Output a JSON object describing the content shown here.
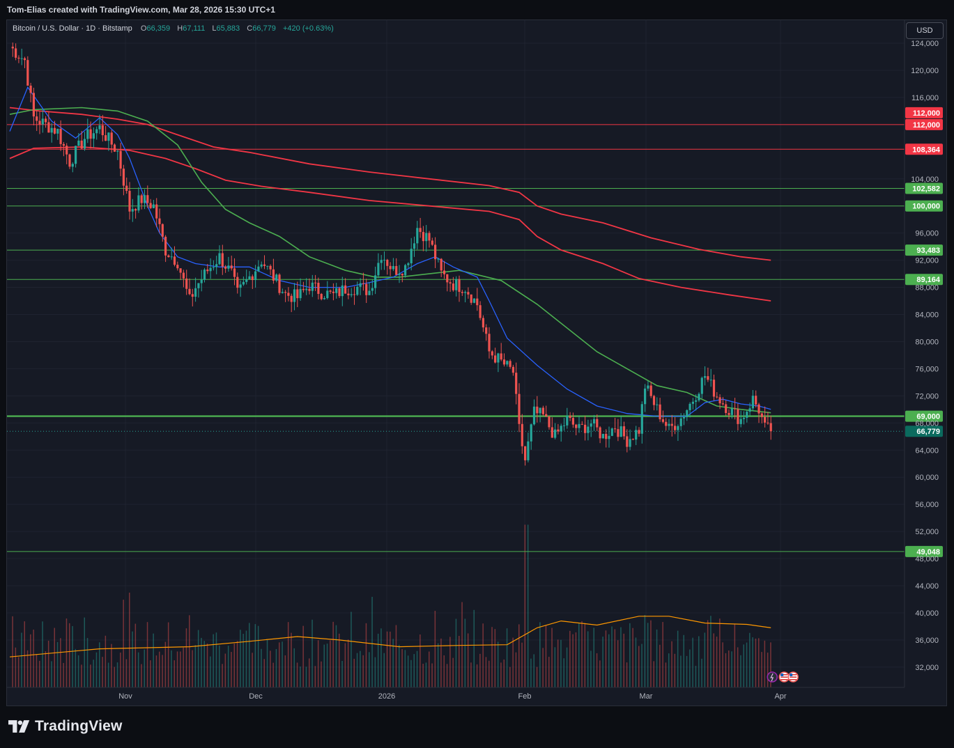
{
  "header": {
    "created_by": "Tom-Elias created with TradingView.com, Mar 28, 2026 15:30 UTC+1"
  },
  "legend": {
    "symbol": "Bitcoin / U.S. Dollar · 1D · Bitstamp",
    "open_label": "O",
    "open": "66,359",
    "high_label": "H",
    "high": "67,111",
    "low_label": "L",
    "low": "65,883",
    "close_label": "C",
    "close": "66,779",
    "change": "+420 (+0.63%)"
  },
  "currency_button": "USD",
  "footer": {
    "brand": "TradingView"
  },
  "colors": {
    "bull": "#26a69a",
    "bear": "#ef5350",
    "ema_short": "#2962ff",
    "ema_mid": "#4caf50",
    "ema_long": "#f23645",
    "volume_ma": "#ff9800",
    "hline_green": "#4caf50",
    "hline_red": "#f23645"
  },
  "chart_data": {
    "type": "candlestick",
    "y_axis_ticks": [
      "124,000",
      "120,000",
      "116,000",
      "104,000",
      "96,000",
      "92,000",
      "88,000",
      "84,000",
      "80,000",
      "76,000",
      "72,000",
      "68,000",
      "64,000",
      "60,000",
      "56,000",
      "52,000",
      "48,000",
      "44,000",
      "40,000",
      "36,000",
      "32,000"
    ],
    "ylim": [
      29000,
      127000
    ],
    "x_axis_labels": [
      "Nov",
      "Dec",
      "2026",
      "Feb",
      "Mar",
      "Apr"
    ],
    "horizontal_levels": [
      {
        "value": 112000,
        "label": "112,000",
        "color": "red"
      },
      {
        "value": 108364,
        "label": "108,364",
        "color": "red"
      },
      {
        "value": 102582,
        "label": "102,582",
        "color": "green"
      },
      {
        "value": 100000,
        "label": "100,000",
        "color": "green"
      },
      {
        "value": 93483,
        "label": "93,483",
        "color": "green"
      },
      {
        "value": 89164,
        "label": "89,164",
        "color": "green"
      },
      {
        "value": 69000,
        "label": "69,000",
        "color": "green"
      },
      {
        "value": 49048,
        "label": "49,048",
        "color": "green"
      }
    ],
    "extra_price_labels": [
      {
        "value": 112000,
        "label": "112,000"
      }
    ],
    "last_price": {
      "value": 66779,
      "label": "66,779"
    },
    "price_path": [
      [
        0,
        123500
      ],
      [
        5,
        121500
      ],
      [
        8,
        113000
      ],
      [
        12,
        112000
      ],
      [
        16,
        111000
      ],
      [
        20,
        106500
      ],
      [
        25,
        110000
      ],
      [
        30,
        111500
      ],
      [
        36,
        108000
      ],
      [
        40,
        99500
      ],
      [
        44,
        101000
      ],
      [
        48,
        100000
      ],
      [
        52,
        93500
      ],
      [
        56,
        91800
      ],
      [
        60,
        86000
      ],
      [
        62,
        88000
      ],
      [
        66,
        90500
      ],
      [
        70,
        92500
      ],
      [
        74,
        90000
      ],
      [
        76,
        87000
      ],
      [
        80,
        89500
      ],
      [
        84,
        92000
      ],
      [
        88,
        89500
      ],
      [
        92,
        87000
      ],
      [
        96,
        86500
      ],
      [
        100,
        88300
      ],
      [
        104,
        87300
      ],
      [
        108,
        86800
      ],
      [
        112,
        87800
      ],
      [
        116,
        88000
      ],
      [
        120,
        87500
      ],
      [
        124,
        93000
      ],
      [
        128,
        90500
      ],
      [
        132,
        91000
      ],
      [
        136,
        96800
      ],
      [
        140,
        95000
      ],
      [
        144,
        90000
      ],
      [
        148,
        88500
      ],
      [
        152,
        88000
      ],
      [
        156,
        85500
      ],
      [
        160,
        78500
      ],
      [
        164,
        77000
      ],
      [
        168,
        75500
      ],
      [
        170,
        67000
      ],
      [
        172,
        62500
      ],
      [
        175,
        69500
      ],
      [
        178,
        69000
      ],
      [
        182,
        66000
      ],
      [
        186,
        68500
      ],
      [
        190,
        67000
      ],
      [
        194,
        68000
      ],
      [
        198,
        66000
      ],
      [
        202,
        67500
      ],
      [
        206,
        65500
      ],
      [
        210,
        67000
      ],
      [
        212,
        73500
      ],
      [
        216,
        70000
      ],
      [
        220,
        67000
      ],
      [
        224,
        68700
      ],
      [
        228,
        71500
      ],
      [
        232,
        75000
      ],
      [
        236,
        72000
      ],
      [
        240,
        70000
      ],
      [
        244,
        68500
      ],
      [
        248,
        71500
      ],
      [
        250,
        70000
      ],
      [
        252,
        67200
      ],
      [
        254,
        66779
      ]
    ],
    "ema_short": [
      [
        0,
        111000
      ],
      [
        6,
        117500
      ],
      [
        14,
        112500
      ],
      [
        22,
        110000
      ],
      [
        30,
        113000
      ],
      [
        36,
        110500
      ],
      [
        40,
        107000
      ],
      [
        46,
        100000
      ],
      [
        50,
        96000
      ],
      [
        56,
        92500
      ],
      [
        62,
        91500
      ],
      [
        70,
        91000
      ],
      [
        80,
        91000
      ],
      [
        90,
        89000
      ],
      [
        100,
        88000
      ],
      [
        112,
        88000
      ],
      [
        120,
        88700
      ],
      [
        128,
        89500
      ],
      [
        136,
        91500
      ],
      [
        142,
        92500
      ],
      [
        148,
        91000
      ],
      [
        156,
        89500
      ],
      [
        160,
        86000
      ],
      [
        166,
        80500
      ],
      [
        176,
        76500
      ],
      [
        186,
        73000
      ],
      [
        196,
        70500
      ],
      [
        206,
        69400
      ],
      [
        216,
        69000
      ],
      [
        226,
        69000
      ],
      [
        232,
        71000
      ],
      [
        238,
        71500
      ],
      [
        244,
        70800
      ],
      [
        250,
        70500
      ],
      [
        254,
        70000
      ]
    ],
    "ema_mid": [
      [
        0,
        113500
      ],
      [
        8,
        114200
      ],
      [
        24,
        114500
      ],
      [
        36,
        114000
      ],
      [
        46,
        112500
      ],
      [
        56,
        109000
      ],
      [
        64,
        103500
      ],
      [
        72,
        99500
      ],
      [
        80,
        97500
      ],
      [
        90,
        95500
      ],
      [
        100,
        92500
      ],
      [
        112,
        90500
      ],
      [
        122,
        89500
      ],
      [
        130,
        89500
      ],
      [
        140,
        90000
      ],
      [
        150,
        90500
      ],
      [
        164,
        89000
      ],
      [
        176,
        85500
      ],
      [
        186,
        82000
      ],
      [
        196,
        78500
      ],
      [
        206,
        76000
      ],
      [
        216,
        73500
      ],
      [
        226,
        72500
      ],
      [
        236,
        70500
      ],
      [
        244,
        70000
      ],
      [
        254,
        69500
      ]
    ],
    "ema_long_1": [
      [
        0,
        114500
      ],
      [
        10,
        114000
      ],
      [
        24,
        113500
      ],
      [
        36,
        112800
      ],
      [
        46,
        112000
      ],
      [
        56,
        110500
      ],
      [
        68,
        108700
      ],
      [
        80,
        107900
      ],
      [
        100,
        106200
      ],
      [
        120,
        105000
      ],
      [
        140,
        104000
      ],
      [
        160,
        103000
      ],
      [
        170,
        102000
      ],
      [
        176,
        100000
      ],
      [
        184,
        98800
      ],
      [
        198,
        97500
      ],
      [
        214,
        95300
      ],
      [
        230,
        93600
      ],
      [
        244,
        92500
      ],
      [
        254,
        92000
      ]
    ],
    "ema_long_2": [
      [
        0,
        107000
      ],
      [
        8,
        108500
      ],
      [
        24,
        108700
      ],
      [
        40,
        108200
      ],
      [
        52,
        107000
      ],
      [
        62,
        105500
      ],
      [
        72,
        103800
      ],
      [
        84,
        102900
      ],
      [
        100,
        102000
      ],
      [
        120,
        100800
      ],
      [
        140,
        100000
      ],
      [
        160,
        99200
      ],
      [
        170,
        98000
      ],
      [
        176,
        95500
      ],
      [
        184,
        93500
      ],
      [
        198,
        91500
      ],
      [
        210,
        89300
      ],
      [
        224,
        88000
      ],
      [
        240,
        86900
      ],
      [
        254,
        86000
      ]
    ],
    "volume_ma_path": [
      [
        0,
        33500
      ],
      [
        30,
        34700
      ],
      [
        60,
        35000
      ],
      [
        80,
        35800
      ],
      [
        96,
        36500
      ],
      [
        110,
        36000
      ],
      [
        130,
        35000
      ],
      [
        150,
        35200
      ],
      [
        166,
        35300
      ],
      [
        176,
        37800
      ],
      [
        184,
        38800
      ],
      [
        196,
        38200
      ],
      [
        210,
        39500
      ],
      [
        220,
        39500
      ],
      [
        232,
        38500
      ],
      [
        246,
        38300
      ],
      [
        254,
        37800
      ]
    ]
  }
}
